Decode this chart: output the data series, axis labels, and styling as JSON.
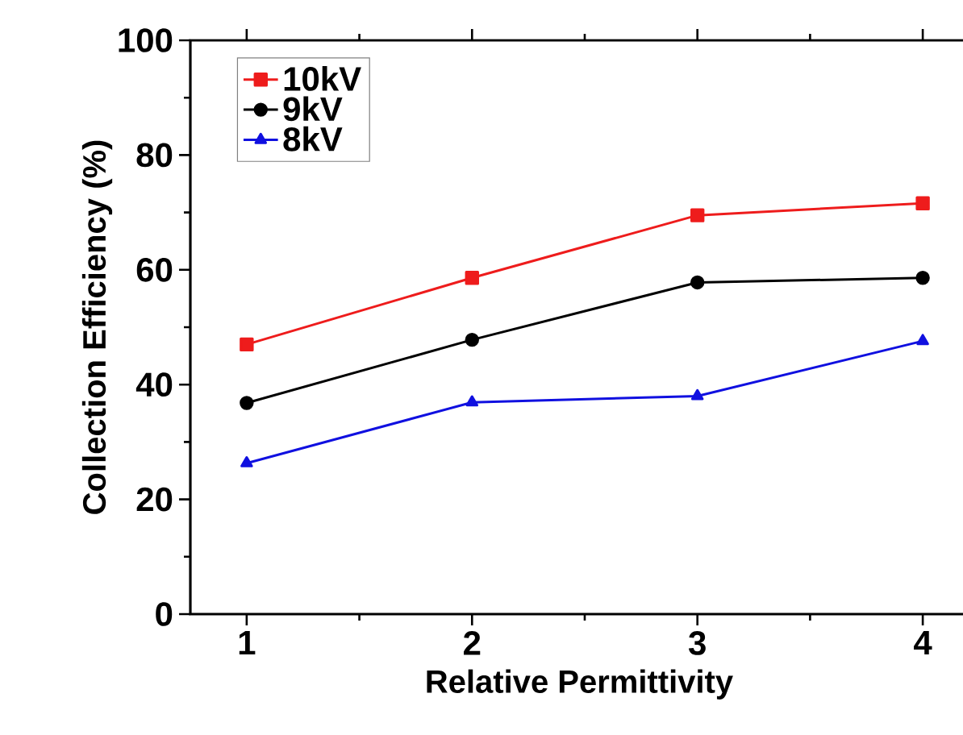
{
  "chart_data": {
    "type": "line",
    "xlabel": "Relative Permittivity",
    "ylabel": "Collection Efficiency (%)",
    "x": [
      1,
      2,
      3,
      4
    ],
    "xlim": [
      0.75,
      4.2
    ],
    "xticks": [
      1,
      2,
      3,
      4
    ],
    "ylim": [
      0,
      100
    ],
    "yticks": [
      0,
      20,
      40,
      60,
      80,
      100
    ],
    "grid": false,
    "legend": "top left",
    "series": [
      {
        "name": "10kV",
        "color": "#ee1c1c",
        "marker": "square",
        "values": [
          47.0,
          58.6,
          69.5,
          71.6
        ]
      },
      {
        "name": "9kV",
        "color": "#000000",
        "marker": "circle",
        "values": [
          36.8,
          47.8,
          57.8,
          58.6
        ]
      },
      {
        "name": "8kV",
        "color": "#1010e0",
        "marker": "triangle",
        "values": [
          26.3,
          36.9,
          38.0,
          47.6
        ]
      }
    ]
  }
}
